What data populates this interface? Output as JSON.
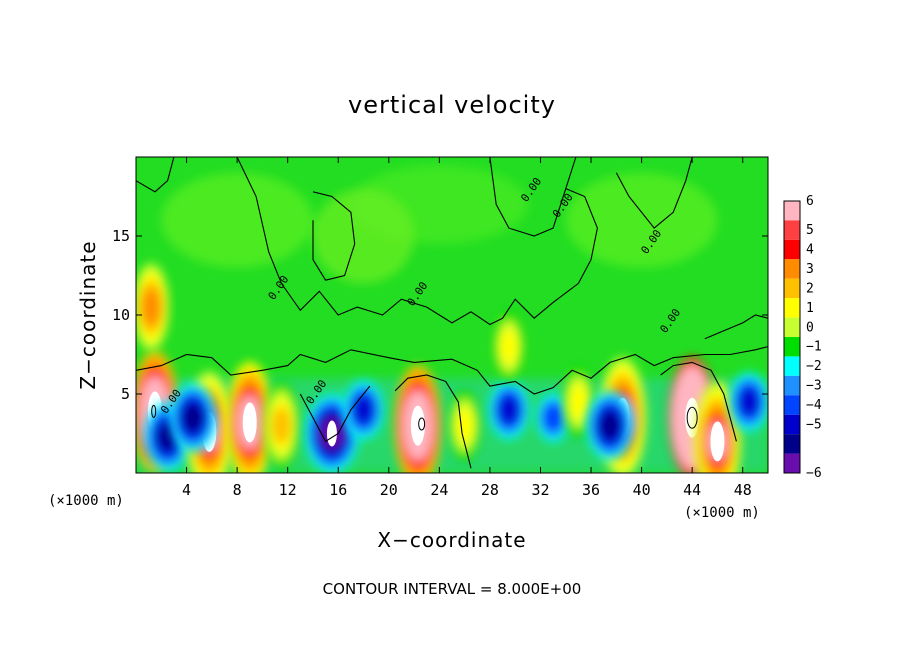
{
  "chart_data": {
    "type": "heatmap",
    "title": "vertical velocity",
    "xlabel": "X−coordinate",
    "ylabel": "Z−coordinate",
    "x_unit": "(×1000 m)",
    "y_unit": "(×1000 m)",
    "xlim": [
      0,
      50
    ],
    "ylim": [
      0,
      20
    ],
    "x_ticks": [
      4,
      8,
      12,
      16,
      20,
      24,
      28,
      32,
      36,
      40,
      44,
      48
    ],
    "y_ticks": [
      5,
      10,
      15
    ],
    "footer": "CONTOUR INTERVAL =  8.000E+00",
    "contour_label": "0.00",
    "colorbar": {
      "levels": [
        6,
        5,
        4,
        3,
        2,
        1,
        0,
        -1,
        -2,
        -3,
        -4,
        -5,
        -6
      ],
      "level_labels": [
        "6",
        "5",
        "4",
        "3",
        "2",
        "1",
        "0",
        "−1",
        "−2",
        "−3",
        "−4",
        "−5",
        "−6"
      ],
      "colors": [
        "#ffb6c1",
        "#ff4040",
        "#ff0000",
        "#ff8c00",
        "#ffc000",
        "#ffff00",
        "#c8ff32",
        "#00dd00",
        "#00ffff",
        "#1e90ff",
        "#0044ff",
        "#0000cd",
        "#00008b",
        "#6a0dad"
      ]
    },
    "features": [
      {
        "x": 1.5,
        "z": 3.9,
        "w": 8.0,
        "note": "updraft core"
      },
      {
        "x": 2.5,
        "z": 2.3,
        "w": -5.0,
        "note": "downdraft"
      },
      {
        "x": 5.8,
        "z": 2.6,
        "w": 6.5,
        "note": "updraft core"
      },
      {
        "x": 4.5,
        "z": 3.5,
        "w": -5.0,
        "note": "downdraft"
      },
      {
        "x": 9.0,
        "z": 3.2,
        "w": 7.0,
        "note": "updraft core"
      },
      {
        "x": 11.5,
        "z": 3.0,
        "w": 3.5,
        "note": "updraft"
      },
      {
        "x": 15.5,
        "z": 2.5,
        "w": -6.0,
        "note": "strong downdraft"
      },
      {
        "x": 18.0,
        "z": 4.0,
        "w": -4.0,
        "note": "downdraft"
      },
      {
        "x": 22.3,
        "z": 3.0,
        "w": 8.0,
        "note": "updraft core"
      },
      {
        "x": 26.0,
        "z": 3.0,
        "w": 2.5,
        "note": "updraft"
      },
      {
        "x": 29.5,
        "z": 4.0,
        "w": -3.5,
        "note": "downdraft"
      },
      {
        "x": 33.0,
        "z": 3.5,
        "w": -3.0,
        "note": "downdraft"
      },
      {
        "x": 35.0,
        "z": 4.5,
        "w": 2.5,
        "note": "updraft"
      },
      {
        "x": 38.5,
        "z": 3.5,
        "w": 6.5,
        "note": "updraft core"
      },
      {
        "x": 37.5,
        "z": 3.0,
        "w": -5.0,
        "note": "downdraft"
      },
      {
        "x": 44.0,
        "z": 3.5,
        "w": 10.0,
        "note": "updraft core"
      },
      {
        "x": 46.0,
        "z": 2.0,
        "w": 6.0,
        "note": "updraft"
      },
      {
        "x": 48.5,
        "z": 4.5,
        "w": -4.0,
        "note": "downdraft"
      },
      {
        "x": 1.2,
        "z": 10.5,
        "w": 4.0,
        "note": "upper updraft"
      },
      {
        "x": 29.5,
        "z": 8.0,
        "w": 2.5,
        "note": "upper updraft"
      }
    ]
  }
}
